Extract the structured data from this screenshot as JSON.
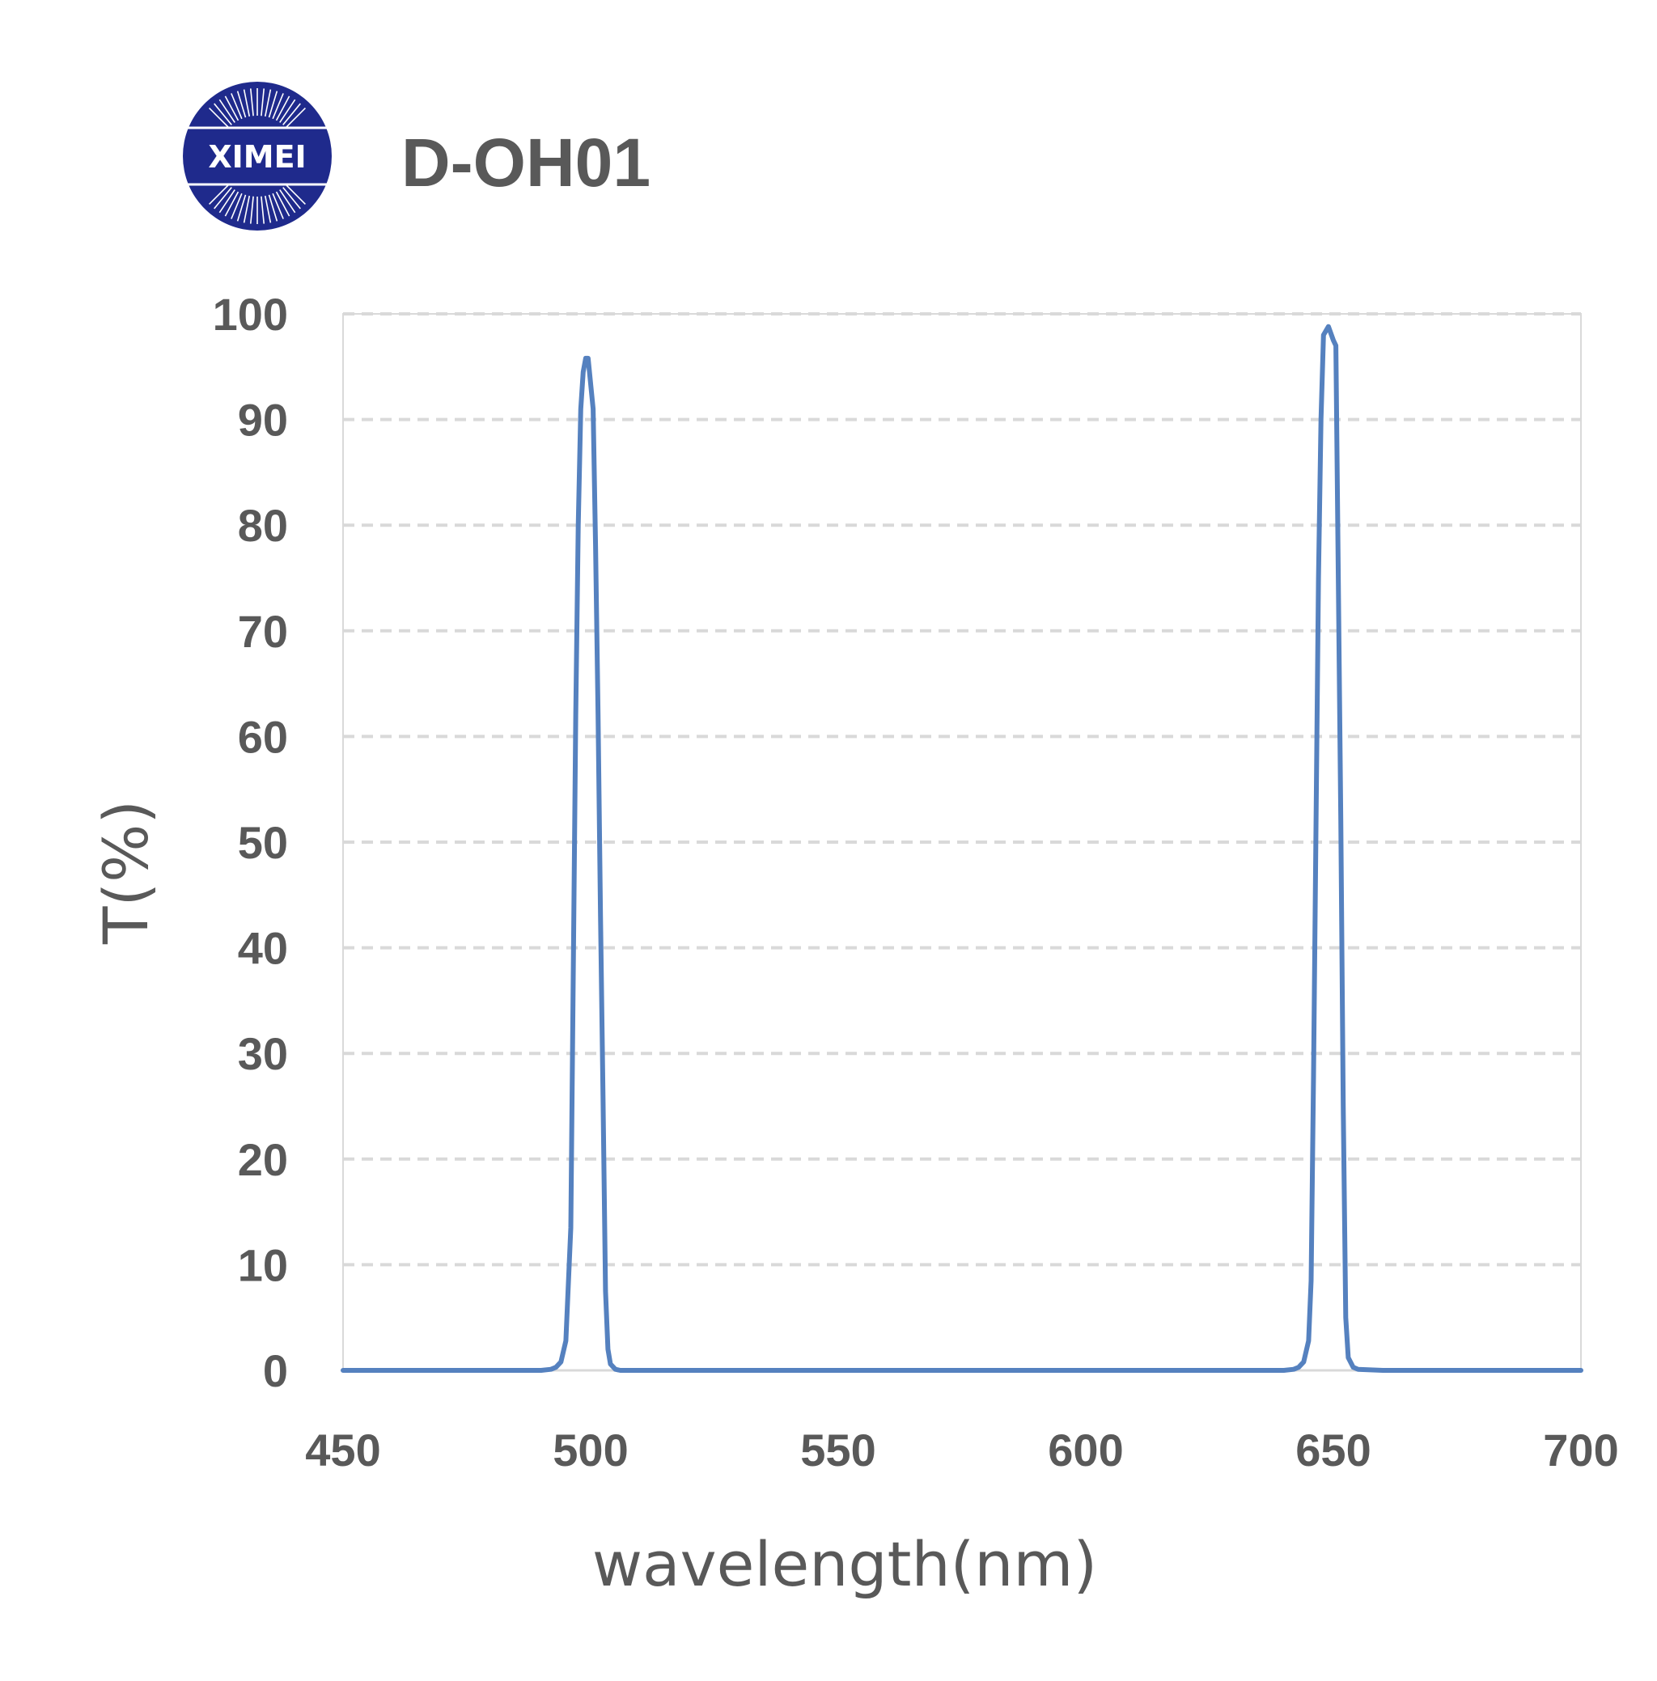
{
  "logo": {
    "text": "XIMEI"
  },
  "chart_data": {
    "type": "line",
    "title": "D-OH01",
    "xlabel": "wavelength(nm)",
    "ylabel": "T(%)",
    "xlim": [
      450,
      700
    ],
    "ylim": [
      0,
      100
    ],
    "xticks": [
      "450",
      "500",
      "550",
      "600",
      "650",
      "700"
    ],
    "yticks": [
      "0",
      "10",
      "20",
      "30",
      "40",
      "50",
      "60",
      "70",
      "80",
      "90",
      "100"
    ],
    "grid": true,
    "color": "#5581bf",
    "series": [
      {
        "x": [
          450,
          480,
          490,
          492,
          493,
          494,
          495,
          496,
          496.5,
          497,
          497.5,
          498,
          498.5,
          499,
          499.5,
          500.5,
          501,
          501.5,
          502,
          502.5,
          503,
          503.5,
          504,
          505,
          506,
          510,
          520,
          530,
          600,
          640,
          642,
          643,
          644,
          645,
          645.5,
          646,
          646.5,
          647,
          647.5,
          648,
          649,
          650,
          650.5,
          651,
          651.5,
          652,
          652.5,
          653,
          654,
          655,
          660,
          670,
          700
        ],
        "y": [
          0,
          0,
          0,
          0.1,
          0.3,
          0.8,
          2.8,
          13.5,
          38,
          62,
          80,
          91,
          94.5,
          95.8,
          95.8,
          91,
          78,
          62,
          43,
          26,
          7.5,
          2,
          0.6,
          0.1,
          0,
          0,
          0,
          0,
          0,
          0,
          0.1,
          0.3,
          0.8,
          2.8,
          8.5,
          28,
          52,
          75,
          90,
          98,
          98.8,
          97.5,
          97,
          75,
          52,
          25,
          5,
          1.2,
          0.3,
          0.1,
          0,
          0,
          0
        ]
      }
    ]
  }
}
